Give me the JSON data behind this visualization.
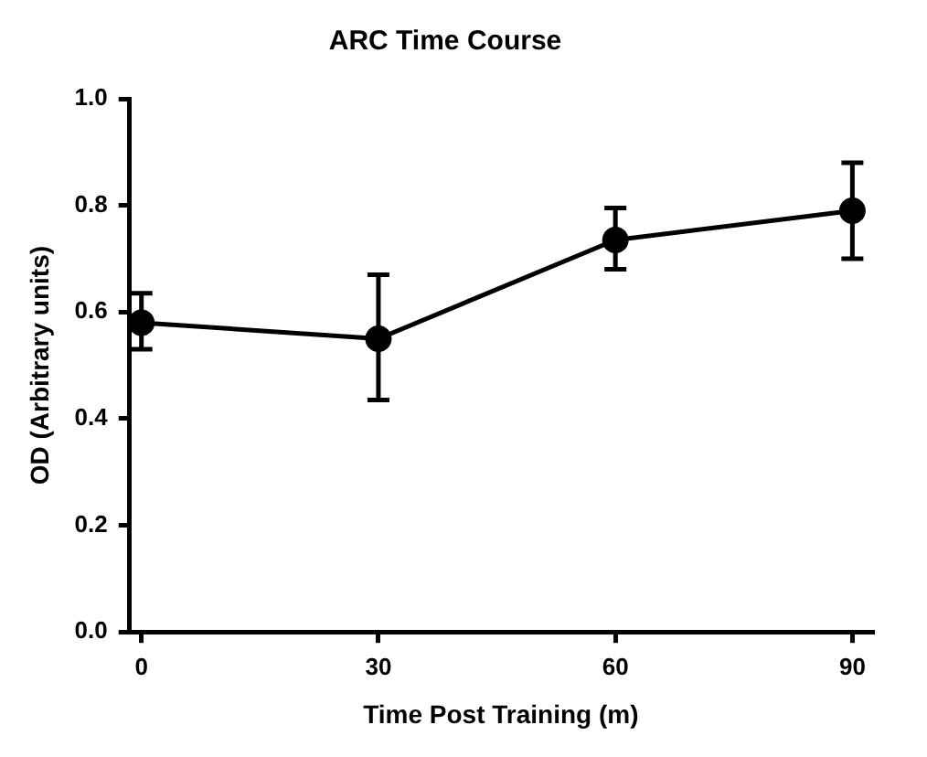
{
  "chart_data": {
    "type": "line",
    "title": "ARC Time Course",
    "xlabel": "Time Post Training (m)",
    "ylabel": "OD (Arbitrary units)",
    "x": [
      0,
      30,
      60,
      90
    ],
    "series": [
      {
        "color": "#000000",
        "values": [
          0.58,
          0.55,
          0.735,
          0.79
        ],
        "errors": [
          [
            0.53,
            0.635
          ],
          [
            0.435,
            0.67
          ],
          [
            0.68,
            0.795
          ],
          [
            0.7,
            0.88
          ]
        ]
      }
    ],
    "xlim": [
      -1.5,
      92.5
    ],
    "xticks": [
      0,
      30,
      60,
      90
    ],
    "ylim": [
      0,
      1
    ],
    "yticks": [
      {
        "value": 0,
        "label": "0.0"
      },
      {
        "value": 0.2,
        "label": "0.2"
      },
      {
        "value": 0.4,
        "label": "0.4"
      },
      {
        "value": 0.6,
        "label": "0.6"
      },
      {
        "value": 0.8,
        "label": "0.8"
      },
      {
        "value": 1,
        "label": "1.0"
      }
    ],
    "grid": false,
    "legend": false,
    "marker": "circle",
    "line_style": "solid"
  }
}
